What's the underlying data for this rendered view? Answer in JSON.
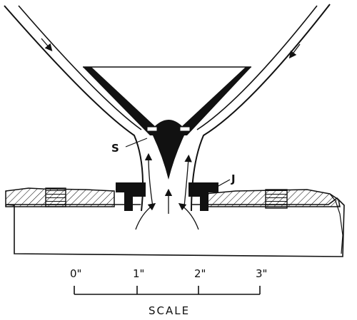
{
  "diagram": {
    "callouts": {
      "seat": "S",
      "joint": "J"
    },
    "scale": {
      "ticks": [
        "0\"",
        "1\"",
        "2\"",
        "3\""
      ],
      "caption": "SCALE"
    }
  }
}
